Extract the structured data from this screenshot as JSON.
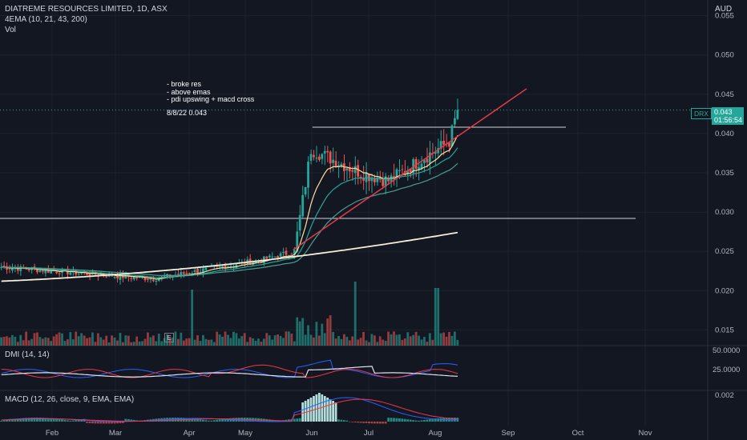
{
  "header": {
    "title": "DIATREME RESOURCES LIMITED, 1D, ASX",
    "indicator": "4EMA (10, 21, 43, 200)",
    "volume": "Vol"
  },
  "currency": "AUD",
  "annotation": {
    "notes": "- broke res\n- above emas\n- pdi upswing + macd cross",
    "date_price": "8/8/22 0.043"
  },
  "price_badge": {
    "symbol": "DRX",
    "price": "0.043",
    "countdown": "01:56:54"
  },
  "earnings_marker": "E",
  "colors": {
    "background": "#131722",
    "up": "#26a69a",
    "down": "#ef5350",
    "ema10": "#ffe0a0",
    "ema21": "#26a69a",
    "ema43": "#4a9e8f",
    "ema200": "#f5efd8",
    "trendline": "#e83b4a",
    "level": "#d1d4dc",
    "dmi_plus": "#2962ff",
    "dmi_minus": "#f23645",
    "adx": "#e0e3eb"
  },
  "chart_data": [
    {
      "type": "candlestick",
      "panel": "price",
      "x_ticks": [
        "Feb",
        "Mar",
        "Apr",
        "May",
        "Jun",
        "Jul",
        "Aug",
        "Sep",
        "Oct",
        "Nov"
      ],
      "y_ticks": [
        "0.055",
        "0.050",
        "0.045",
        "0.040",
        "0.035",
        "0.030",
        "0.025",
        "0.020",
        "0.015"
      ],
      "ylim": [
        0.013,
        0.057
      ],
      "last_price": 0.043,
      "resistance_level": 0.0408,
      "support_level": 0.0292,
      "series": [
        {
          "name": "Close",
          "phases": [
            {
              "from": 0,
              "to": 55,
              "start": 0.023,
              "end": 0.0215
            },
            {
              "from": 55,
              "to": 95,
              "start": 0.0215,
              "end": 0.024
            },
            {
              "from": 95,
              "to": 106,
              "start": 0.024,
              "end": 0.025
            },
            {
              "from": 106,
              "to": 112,
              "start": 0.025,
              "end": 0.038
            },
            {
              "from": 112,
              "to": 130,
              "start": 0.038,
              "end": 0.035
            },
            {
              "from": 130,
              "to": 140,
              "start": 0.035,
              "end": 0.034
            },
            {
              "from": 140,
              "to": 162,
              "start": 0.034,
              "end": 0.039
            },
            {
              "from": 162,
              "to": 165,
              "start": 0.039,
              "end": 0.043
            }
          ]
        },
        {
          "name": "EMA 10"
        },
        {
          "name": "EMA 21"
        },
        {
          "name": "EMA 43"
        },
        {
          "name": "EMA 200",
          "start": 0.0212,
          "end": 0.0274
        }
      ]
    },
    {
      "type": "bar",
      "panel": "volume",
      "colors_follow_candles": true
    },
    {
      "type": "line",
      "panel": "dmi",
      "title": "DMI (14, 14)",
      "y_ticks": [
        "50.0000",
        "25.0000"
      ],
      "series": [
        {
          "name": "+DI"
        },
        {
          "name": "-DI"
        },
        {
          "name": "ADX"
        }
      ]
    },
    {
      "type": "line",
      "panel": "macd",
      "title": "MACD (12, 26, close, 9, EMA, EMA)",
      "y_ticks": [
        "0.002"
      ],
      "series": [
        {
          "name": "MACD"
        },
        {
          "name": "Signal"
        },
        {
          "name": "Histogram"
        }
      ]
    }
  ]
}
